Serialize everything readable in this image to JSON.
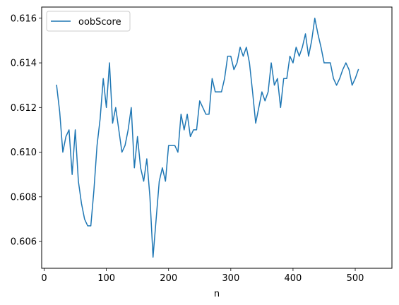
{
  "chart_data": {
    "type": "line",
    "title": "",
    "xlabel": "n",
    "ylabel": "",
    "xlim": [
      -4,
      559
    ],
    "ylim": [
      0.6048,
      0.6165
    ],
    "xticks": [
      0,
      100,
      200,
      300,
      400,
      500
    ],
    "yticks": [
      0.606,
      0.608,
      0.61,
      0.612,
      0.614,
      0.616
    ],
    "xtick_labels": [
      "0",
      "100",
      "200",
      "300",
      "400",
      "500"
    ],
    "ytick_labels": [
      "0.606",
      "0.608",
      "0.610",
      "0.612",
      "0.614",
      "0.616"
    ],
    "grid": false,
    "legend_position": "top-left",
    "series": [
      {
        "name": "oobScore",
        "color": "#1f77b4",
        "x": [
          20,
          25,
          30,
          35,
          40,
          45,
          50,
          55,
          60,
          65,
          70,
          75,
          80,
          85,
          90,
          95,
          100,
          105,
          110,
          115,
          120,
          125,
          130,
          135,
          140,
          145,
          150,
          155,
          160,
          165,
          170,
          175,
          180,
          185,
          190,
          195,
          200,
          205,
          210,
          215,
          220,
          225,
          230,
          235,
          240,
          245,
          250,
          255,
          260,
          265,
          270,
          275,
          280,
          285,
          290,
          295,
          300,
          305,
          310,
          315,
          320,
          325,
          330,
          335,
          340,
          345,
          350,
          355,
          360,
          365,
          370,
          375,
          380,
          385,
          390,
          395,
          400,
          405,
          410,
          415,
          420,
          425,
          430,
          435,
          440,
          445,
          450,
          455,
          460,
          465,
          470,
          475,
          480,
          485,
          490,
          495,
          500,
          505
        ],
        "y": [
          0.613,
          0.6118,
          0.61,
          0.6107,
          0.611,
          0.609,
          0.611,
          0.6087,
          0.6077,
          0.607,
          0.6067,
          0.6067,
          0.6083,
          0.6103,
          0.6115,
          0.6133,
          0.612,
          0.614,
          0.6113,
          0.612,
          0.611,
          0.61,
          0.6103,
          0.611,
          0.612,
          0.6093,
          0.6107,
          0.6093,
          0.6087,
          0.6097,
          0.608,
          0.6053,
          0.607,
          0.6087,
          0.6093,
          0.6087,
          0.6103,
          0.6103,
          0.6103,
          0.61,
          0.6117,
          0.611,
          0.6117,
          0.6107,
          0.611,
          0.611,
          0.6123,
          0.612,
          0.6117,
          0.6117,
          0.6133,
          0.6127,
          0.6127,
          0.6127,
          0.6133,
          0.6143,
          0.6143,
          0.6137,
          0.614,
          0.6147,
          0.6143,
          0.6147,
          0.614,
          0.6127,
          0.6113,
          0.612,
          0.6127,
          0.6123,
          0.6127,
          0.614,
          0.613,
          0.6133,
          0.612,
          0.6133,
          0.6133,
          0.6143,
          0.614,
          0.6147,
          0.6143,
          0.6147,
          0.6153,
          0.6143,
          0.615,
          0.616,
          0.6153,
          0.6147,
          0.614,
          0.614,
          0.614,
          0.6133,
          0.613,
          0.6133,
          0.6137,
          0.614,
          0.6137,
          0.613,
          0.6133,
          0.6137
        ]
      }
    ]
  }
}
